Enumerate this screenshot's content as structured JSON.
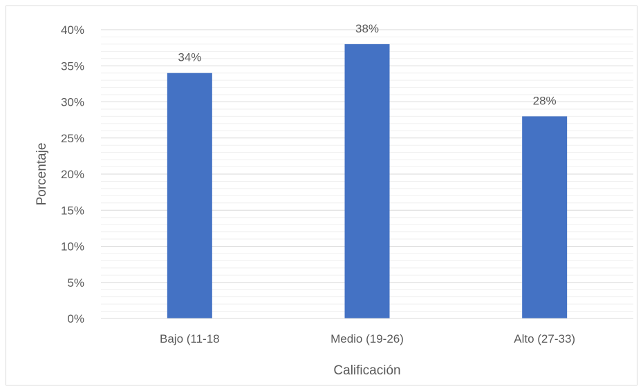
{
  "chart_data": {
    "type": "bar",
    "title": "",
    "xlabel": "Calificación",
    "ylabel": "Porcentaje",
    "categories": [
      "Bajo (11-18",
      "Medio (19-26)",
      "Alto (27-33)"
    ],
    "values": [
      34,
      38,
      28
    ],
    "data_labels": [
      "34%",
      "38%",
      "28%"
    ],
    "ylim": [
      0,
      40
    ],
    "yticks": [
      0,
      5,
      10,
      15,
      20,
      25,
      30,
      35,
      40
    ],
    "ytick_labels": [
      "0%",
      "5%",
      "10%",
      "15%",
      "20%",
      "25%",
      "30%",
      "35%",
      "40%"
    ],
    "grid": "major and minor horizontal",
    "legend": "none",
    "colors": {
      "bar": "#4472c4",
      "grid_major": "#d9d9d9",
      "grid_minor": "#efefef",
      "text": "#595959"
    }
  }
}
